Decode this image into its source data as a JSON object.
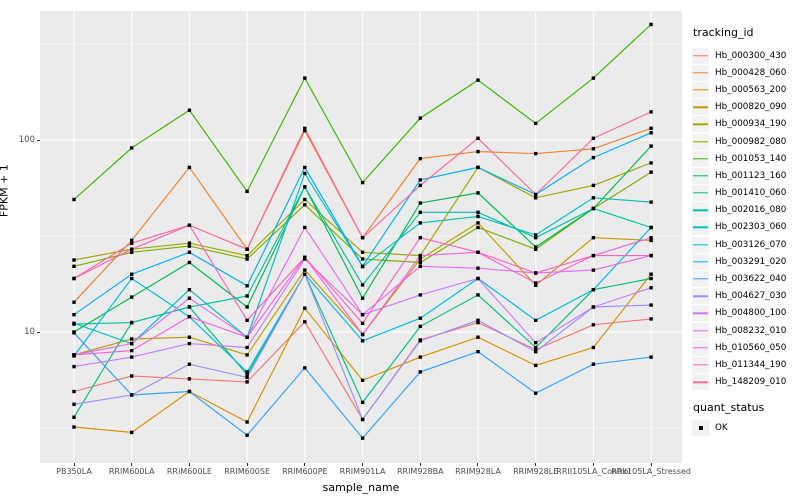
{
  "figure": {
    "bg_color": "#FFFFFF",
    "panel_bg_color": "#EBEBEB",
    "grid_color": "#FFFFFF",
    "point_color": "#000000"
  },
  "axes": {
    "x_title": "sample_name",
    "y_title": "FPKM + 1",
    "y_tick_labels": [
      "10",
      "100"
    ],
    "x_tick_labels": [
      "PB350LA",
      "RRIM600LA",
      "RRIM600LE",
      "RRIM600SE",
      "RRIM600PE",
      "RRIM901LA",
      "RRIM928BA",
      "RRIM928LA",
      "RRIM928LE",
      "RRII105LA_Control",
      "RRII105LA_Stressed"
    ]
  },
  "legend": {
    "tracking_title": "tracking_id",
    "quant_title": "quant_status",
    "quant_items": [
      {
        "label": "OK",
        "shape": "filled-square",
        "color": "#000000"
      }
    ]
  },
  "chart_data": {
    "type": "line",
    "title": "",
    "xlabel": "sample_name",
    "ylabel": "FPKM + 1",
    "y_scale": "log10",
    "ylim": [
      2.08,
      470
    ],
    "y_major_breaks": [
      10,
      100
    ],
    "y_minor_breaks": [
      3.162,
      31.62,
      316.2
    ],
    "grid": true,
    "legend_position": "right",
    "point_shape": "filled-square-black (quant_status OK)",
    "categories": [
      "PB350LA",
      "RRIM600LA",
      "RRIM600LE",
      "RRIM600SE",
      "RRIM600PE",
      "RRIM901LA",
      "RRIM928BA",
      "RRIM928LA",
      "RRIM928LE",
      "RRII105LA_Control",
      "RRII105LA_Stressed"
    ],
    "series": [
      {
        "name": "Hb_000300_430",
        "color": "#F8766D",
        "values": [
          4.9,
          5.9,
          5.7,
          5.5,
          11.3,
          3.5,
          9.1,
          11.2,
          8.1,
          10.9,
          11.7
        ]
      },
      {
        "name": "Hb_000428_060",
        "color": "#EA8331",
        "values": [
          14.3,
          30,
          72,
          27,
          112,
          31,
          80,
          87,
          85,
          90,
          115
        ]
      },
      {
        "name": "Hb_000563_200",
        "color": "#D89000",
        "values": [
          3.2,
          3.0,
          4.9,
          3.4,
          13.3,
          5.6,
          7.4,
          9.4,
          6.7,
          8.3,
          20
        ]
      },
      {
        "name": "Hb_000820_090",
        "color": "#C09B00",
        "values": [
          7.6,
          9.2,
          9.4,
          7.6,
          21,
          9.7,
          24,
          37,
          17.5,
          31,
          30
        ]
      },
      {
        "name": "Hb_000934_190",
        "color": "#A3A500",
        "values": [
          23.7,
          27,
          29,
          25,
          49,
          26,
          25,
          72,
          50,
          58,
          76
        ]
      },
      {
        "name": "Hb_000982_080",
        "color": "#7CAE00",
        "values": [
          22,
          26,
          28,
          24,
          46,
          24,
          23,
          35,
          27,
          44,
          68
        ]
      },
      {
        "name": "Hb_001053_140",
        "color": "#39B600",
        "values": [
          49,
          91,
          143,
          54,
          210,
          60,
          130,
          205,
          122,
          210,
          400
        ]
      },
      {
        "name": "Hb_001123_160",
        "color": "#00BB4E",
        "values": [
          10,
          15.2,
          23,
          13.5,
          57,
          15,
          47,
          53,
          27.7,
          44,
          93
        ]
      },
      {
        "name": "Hb_001410_060",
        "color": "#00BF7D",
        "values": [
          3.6,
          11.2,
          13.5,
          6.0,
          20,
          4.3,
          10.7,
          15.6,
          8.3,
          16.6,
          19
        ]
      },
      {
        "name": "Hb_002016_080",
        "color": "#00C1A3",
        "values": [
          11,
          11.2,
          13.5,
          15.4,
          57,
          17.6,
          42,
          42,
          31,
          44,
          35
        ]
      },
      {
        "name": "Hb_002303_060",
        "color": "#00BFC4",
        "values": [
          11.1,
          8.7,
          16.6,
          9.4,
          67,
          21.9,
          37,
          40,
          32,
          50,
          47.5
        ]
      },
      {
        "name": "Hb_003126_070",
        "color": "#00BAE0",
        "values": [
          7.5,
          19,
          12,
          6.2,
          20,
          9,
          11.8,
          19,
          11.5,
          16.6,
          35
        ]
      },
      {
        "name": "Hb_003291_020",
        "color": "#00B0F6",
        "values": [
          12.3,
          20,
          26,
          17.4,
          72,
          22,
          62,
          72,
          52,
          81,
          109
        ]
      },
      {
        "name": "Hb_003622_040",
        "color": "#35A2FF",
        "values": [
          9.9,
          4.7,
          4.9,
          2.9,
          6.5,
          2.8,
          6.2,
          7.9,
          4.8,
          6.8,
          7.4
        ]
      },
      {
        "name": "Hb_004627_030",
        "color": "#9590FF",
        "values": [
          4.2,
          4.7,
          6.8,
          5.8,
          20,
          3.5,
          9.0,
          11.5,
          7.9,
          13.5,
          13.8
        ]
      },
      {
        "name": "Hb_004800_100",
        "color": "#C77CFF",
        "values": [
          6.6,
          7.4,
          8.7,
          8.3,
          24,
          12.3,
          15.6,
          19,
          8.8,
          13.5,
          17
        ]
      },
      {
        "name": "Hb_008232_010",
        "color": "#E76BF3",
        "values": [
          7.6,
          8.7,
          15,
          9.4,
          35,
          12.3,
          22,
          21.5,
          20.3,
          21,
          25
        ]
      },
      {
        "name": "Hb_010560_050",
        "color": "#FA62DB",
        "values": [
          7.6,
          8.0,
          12,
          9.4,
          24.5,
          9.7,
          25,
          26,
          18,
          25,
          31
        ]
      },
      {
        "name": "Hb_011344_190",
        "color": "#FF62BC",
        "values": [
          19,
          27,
          36,
          11.5,
          24.5,
          11.1,
          31,
          26,
          20.3,
          25,
          25
        ]
      },
      {
        "name": "Hb_148209_010",
        "color": "#FF6A98",
        "values": [
          19,
          29,
          36,
          27,
          115,
          31,
          58,
          102,
          52,
          102,
          140
        ]
      }
    ]
  }
}
